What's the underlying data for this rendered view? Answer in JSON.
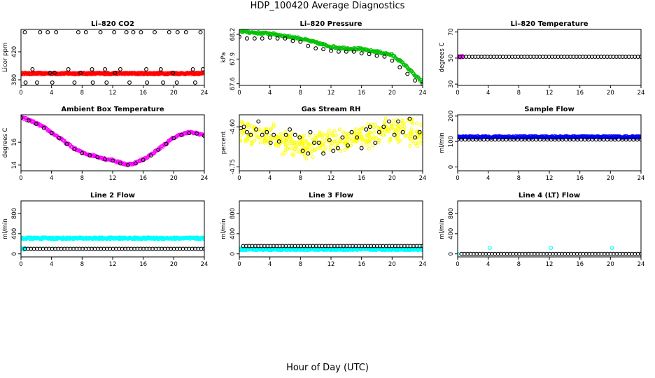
{
  "figure": {
    "title": "HDP_100420  Average Diagnostics",
    "xlabel": "Hour of Day (UTC)"
  },
  "chart_data": [
    {
      "type": "scatter",
      "title": "Li–820 CO2",
      "ylabel": "Licor ppm",
      "xlim": [
        0,
        24
      ],
      "ylim": [
        372,
        452
      ],
      "xticks": [
        "0",
        "4",
        "8",
        "12",
        "16",
        "20",
        "24"
      ],
      "yticks": [
        380,
        420
      ],
      "series": [
        {
          "color": "#ff0000",
          "shape": "dense",
          "x_start": 0,
          "x_end": 24,
          "y": 389
        },
        {
          "color": "#000000",
          "shape": "ring",
          "x": [
            0.5,
            2.5,
            3.5,
            4.6,
            7.5,
            8.5,
            10.4,
            12.2,
            13.8,
            14.7,
            15.7,
            17.5,
            19.4,
            20.5,
            21.6,
            23.5,
            1.5,
            6.2,
            9.3,
            11.0,
            13.0,
            16.4,
            18.3,
            22.5,
            23.8,
            3.8,
            4.4,
            7.8,
            12.3,
            19.9,
            0.6,
            2.1,
            4.1,
            7.0,
            9.4,
            11.2,
            14.2,
            16.5,
            18.6,
            20.4,
            22.8
          ],
          "y": [
            448,
            448,
            448,
            448,
            448,
            448,
            448,
            448,
            448,
            448,
            448,
            448,
            448,
            448,
            448,
            448,
            395,
            395,
            395,
            395,
            395,
            395,
            395,
            395,
            395,
            390,
            390,
            390,
            390,
            390,
            376,
            376,
            376,
            376,
            376,
            376,
            376,
            376,
            376,
            376,
            376
          ]
        }
      ]
    },
    {
      "type": "scatter",
      "title": "Li–820 Pressure",
      "ylabel": "kPa",
      "xlim": [
        0,
        24
      ],
      "ylim": [
        67.58,
        68.26
      ],
      "xticks": [
        "0",
        "4",
        "8",
        "12",
        "16",
        "20",
        "24"
      ],
      "yticks": [
        "67.6",
        "67.9",
        "68.2"
      ],
      "series": [
        {
          "color": "#00c000",
          "shape": "band",
          "x": [
            0,
            2,
            4,
            6,
            8,
            10,
            12,
            14,
            16,
            17,
            18,
            19,
            20,
            21,
            22,
            23,
            24
          ],
          "y": [
            68.24,
            68.22,
            68.21,
            68.18,
            68.15,
            68.1,
            68.05,
            68.03,
            68.02,
            68.0,
            67.99,
            67.97,
            67.95,
            67.88,
            67.8,
            67.7,
            67.62
          ]
        },
        {
          "color": "#000000",
          "shape": "ring",
          "x": [
            0,
            1,
            2,
            3,
            4,
            5,
            6,
            7,
            8,
            9,
            10,
            11,
            12,
            13,
            14,
            15,
            16,
            17,
            18,
            19,
            20,
            21,
            22,
            23,
            24
          ],
          "y": [
            68.17,
            68.15,
            68.15,
            68.15,
            68.16,
            68.15,
            68.15,
            68.12,
            68.11,
            68.06,
            68.03,
            68.02,
            68.0,
            67.99,
            67.99,
            67.99,
            67.97,
            67.96,
            67.94,
            67.93,
            67.88,
            67.8,
            67.72,
            67.64,
            67.6
          ]
        }
      ]
    },
    {
      "type": "scatter",
      "title": "Li–820 Temperature",
      "ylabel": "degrees C",
      "xlim": [
        0,
        24
      ],
      "ylim": [
        29,
        72
      ],
      "xticks": [
        "0",
        "4",
        "8",
        "12",
        "16",
        "20",
        "24"
      ],
      "yticks": [
        30,
        50,
        70
      ],
      "series": [
        {
          "color": "#ff00ff",
          "shape": "dense",
          "x_start": 0,
          "x_end": 0.6,
          "y": 51
        },
        {
          "color": "#000000",
          "shape": "ring",
          "x_start": 0.3,
          "x_end": 24,
          "n": 60,
          "y": 51
        }
      ]
    },
    {
      "type": "scatter",
      "title": "Ambient Box Temperature",
      "ylabel": "degrees C",
      "xlim": [
        0,
        24
      ],
      "ylim": [
        13.5,
        18.4
      ],
      "xticks": [
        "0",
        "4",
        "8",
        "12",
        "16",
        "20",
        "24"
      ],
      "yticks": [
        14,
        16
      ],
      "series": [
        {
          "color": "#ff00ff",
          "shape": "band",
          "x": [
            0,
            1,
            2,
            3,
            4,
            5,
            6,
            7,
            8,
            9,
            10,
            11,
            12,
            13,
            14,
            15,
            16,
            17,
            18,
            19,
            20,
            21,
            22,
            23,
            24
          ],
          "y": [
            18.2,
            17.95,
            17.65,
            17.3,
            16.85,
            16.4,
            15.9,
            15.45,
            15.1,
            14.9,
            14.75,
            14.55,
            14.45,
            14.2,
            14.05,
            14.2,
            14.5,
            14.9,
            15.4,
            15.9,
            16.4,
            16.7,
            16.85,
            16.8,
            16.6
          ]
        },
        {
          "color": "#000000",
          "shape": "ring",
          "x": [
            0,
            1,
            2,
            3,
            4,
            5,
            6,
            7,
            8,
            9,
            10,
            11,
            12,
            13,
            14,
            15,
            16,
            17,
            18,
            19,
            20,
            21,
            22,
            23,
            24
          ],
          "y": [
            18.15,
            17.9,
            17.6,
            17.25,
            16.8,
            16.35,
            15.85,
            15.4,
            15.05,
            14.85,
            14.7,
            14.5,
            14.4,
            14.15,
            14.0,
            14.15,
            14.45,
            14.85,
            15.35,
            15.85,
            16.35,
            16.65,
            16.8,
            16.75,
            16.55
          ]
        }
      ]
    },
    {
      "type": "scatter",
      "title": "Gas Stream RH",
      "ylabel": "percent",
      "xlim": [
        0,
        24
      ],
      "ylim": [
        -4.765,
        -4.555
      ],
      "xticks": [
        "0",
        "4",
        "8",
        "12",
        "16",
        "20",
        "24"
      ],
      "yticks": [
        "-4.75",
        "-4.60"
      ],
      "series": [
        {
          "color": "#ffff00",
          "shape": "cloud",
          "x_start": 0,
          "x_end": 24,
          "n": 380,
          "y_center": [
            -4.62,
            -4.625,
            -4.63,
            -4.66,
            -4.67,
            -4.665,
            -4.655,
            -4.65,
            -4.64,
            -4.62,
            -4.615,
            -4.62,
            -4.64
          ],
          "y_spread": 0.055
        },
        {
          "color": "#000000",
          "shape": "ring",
          "x": [
            0.2,
            0.6,
            1.0,
            1.5,
            2.2,
            2.5,
            3.0,
            3.6,
            4.1,
            4.5,
            5.2,
            6.1,
            6.6,
            7.3,
            7.9,
            8.3,
            9.0,
            9.3,
            9.8,
            10.4,
            11.0,
            11.8,
            12.3,
            12.9,
            13.5,
            14.2,
            14.7,
            15.4,
            16.0,
            16.6,
            17.1,
            17.8,
            18.3,
            18.9,
            19.6,
            20.3,
            20.8,
            21.4,
            22.3,
            23.0,
            23.6
          ],
          "y": [
            -4.605,
            -4.6,
            -4.62,
            -4.63,
            -4.61,
            -4.58,
            -4.63,
            -4.62,
            -4.66,
            -4.63,
            -4.655,
            -4.63,
            -4.61,
            -4.63,
            -4.64,
            -4.69,
            -4.7,
            -4.62,
            -4.66,
            -4.66,
            -4.7,
            -4.65,
            -4.69,
            -4.68,
            -4.64,
            -4.67,
            -4.62,
            -4.64,
            -4.68,
            -4.61,
            -4.6,
            -4.66,
            -4.62,
            -4.6,
            -4.58,
            -4.63,
            -4.58,
            -4.62,
            -4.57,
            -4.64,
            -4.62
          ]
        }
      ]
    },
    {
      "type": "scatter",
      "title": "Sample Flow",
      "ylabel": "ml/min",
      "xlim": [
        0,
        24
      ],
      "ylim": [
        -15,
        205
      ],
      "xticks": [
        "0",
        "4",
        "8",
        "12",
        "16",
        "20",
        "24"
      ],
      "yticks": [
        0,
        100,
        200
      ],
      "series": [
        {
          "color": "#0000ff",
          "shape": "dense",
          "x_start": 0,
          "x_end": 24,
          "y": 118
        },
        {
          "color": "#000000",
          "shape": "ring",
          "x_start": 0,
          "x_end": 24,
          "n": 50,
          "y": 108
        }
      ]
    },
    {
      "type": "scatter",
      "title": "Line 2 Flow",
      "ylabel": "ml/min",
      "xlim": [
        0,
        24
      ],
      "ylim": [
        -60,
        1050
      ],
      "xticks": [
        "0",
        "4",
        "8",
        "12",
        "16",
        "20",
        "24"
      ],
      "yticks": [
        0,
        400,
        800
      ],
      "series": [
        {
          "color": "#00ffff",
          "shape": "dense",
          "x_start": 0,
          "x_end": 24,
          "y": 310
        },
        {
          "color": "#00ffff",
          "shape": "dense",
          "x_start": 0,
          "x_end": 0.5,
          "y": 100
        },
        {
          "color": "#000000",
          "shape": "ring",
          "x_start": 0.5,
          "x_end": 24,
          "n": 60,
          "y": 100
        }
      ]
    },
    {
      "type": "scatter",
      "title": "Line 3 Flow",
      "ylabel": "ml/min",
      "xlim": [
        0,
        24
      ],
      "ylim": [
        -60,
        1050
      ],
      "xticks": [
        "0",
        "4",
        "8",
        "12",
        "16",
        "20",
        "24"
      ],
      "yticks": [
        0,
        400,
        800
      ],
      "series": [
        {
          "color": "#00ffff",
          "shape": "dense",
          "x_start": 0,
          "x_end": 24,
          "y": 90
        },
        {
          "color": "#000000",
          "shape": "ring",
          "x_start": 0.5,
          "x_end": 24,
          "n": 60,
          "y": 155
        }
      ]
    },
    {
      "type": "scatter",
      "title": "Line 4 (LT) Flow",
      "ylabel": "ml/min",
      "xlim": [
        0,
        24
      ],
      "ylim": [
        -60,
        1050
      ],
      "xticks": [
        "0",
        "4",
        "8",
        "12",
        "16",
        "20",
        "24"
      ],
      "yticks": [
        0,
        400,
        800
      ],
      "series": [
        {
          "color": "#00ffff",
          "shape": "ring",
          "x": [
            0,
            4.2,
            12.2,
            20.2
          ],
          "y": [
            0,
            120,
            120,
            120
          ]
        },
        {
          "color": "#000000",
          "shape": "ring",
          "x_start": 0.5,
          "x_end": 24,
          "n": 60,
          "y": 0
        }
      ]
    }
  ]
}
